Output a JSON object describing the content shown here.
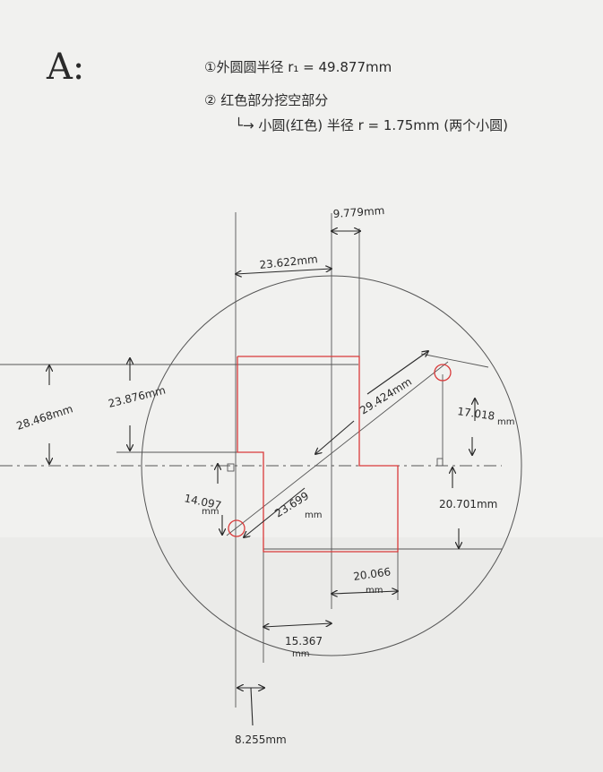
{
  "sheet_letter": "A:",
  "notes": {
    "line1": "①外圆圆半径 r₁ = 49.877mm",
    "line2": "② 红色部分挖空部分",
    "line3": "└→ 小圆(红色) 半径 r = 1.75mm (两个小圆)"
  },
  "dimensions": {
    "d_9779": "9.779mm",
    "d_23622": "23.622mm",
    "d_28468": "28.468mm",
    "d_23876": "23.876mm",
    "d_29424": "29.424mm",
    "d_17018": "17.018",
    "d_17018_unit": "mm",
    "d_14097": "14.097",
    "d_14097_unit": "mm",
    "d_23699": "23.699",
    "d_23699_unit": "mm",
    "d_20701": "20.701mm",
    "d_20066": "20.066",
    "d_20066_unit": "mm",
    "d_15367": "15.367",
    "d_15367_unit": "mm",
    "d_8255": "8.255mm"
  },
  "colors": {
    "pencil": "#3a3a3a",
    "ink": "#2a2a2a",
    "red_cut": "#d93a3a",
    "paper": "#f1f1ef"
  }
}
